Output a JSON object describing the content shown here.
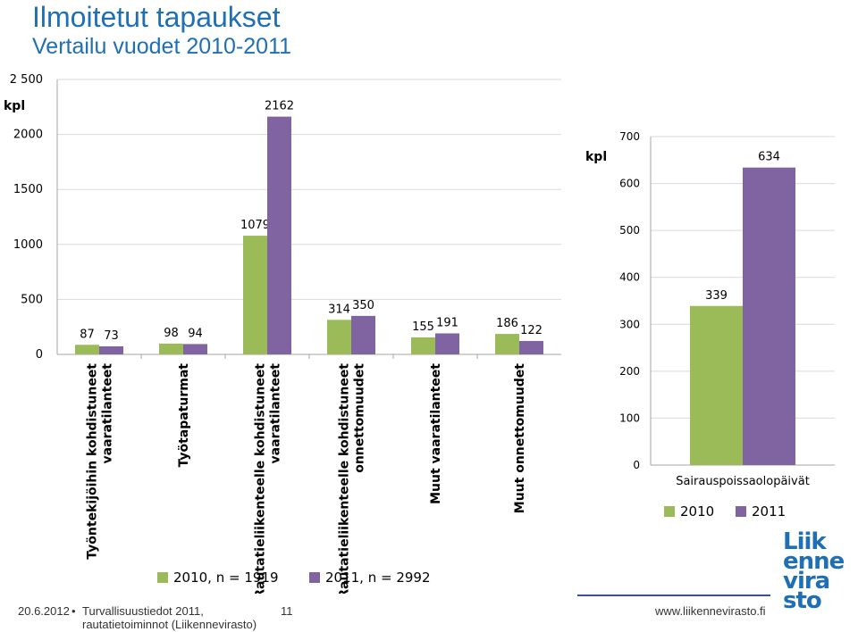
{
  "header": {
    "title": "Ilmoitetut tapaukset",
    "subtitle": "Vertailu vuodet 2010-2011"
  },
  "chart_data": [
    {
      "type": "bar",
      "ylabel": "kpl",
      "ylim": [
        0,
        2500
      ],
      "yticks": [
        "0",
        "500",
        "1000",
        "1500",
        "2000",
        "2 500"
      ],
      "categories": [
        [
          "Työntekijöihin kohdistuneet",
          "vaaratilanteet"
        ],
        [
          "Työtapaturmat"
        ],
        [
          "Rautatieliikenteelle kohdistuneet",
          "vaaratilanteet"
        ],
        [
          "Rautatieliikenteelle kohdistuneet",
          "onnettomuudet"
        ],
        [
          "Muut vaaratilanteet"
        ],
        [
          "Muut onnettomuudet"
        ]
      ],
      "series": [
        {
          "name": "2010, n = 1919",
          "values": [
            87,
            98,
            1079,
            314,
            155,
            186
          ],
          "color": "#9bbb59"
        },
        {
          "name": "2011, n = 2992",
          "values": [
            73,
            94,
            2162,
            350,
            191,
            122
          ],
          "color": "#8064a2"
        }
      ],
      "grid": true,
      "legend": "bottom"
    },
    {
      "type": "bar",
      "ylabel": "kpl",
      "ylim": [
        0,
        700
      ],
      "yticks": [
        "0",
        "100",
        "200",
        "300",
        "400",
        "500",
        "600",
        "700"
      ],
      "categories": [
        "Sairauspoissaolopäivät"
      ],
      "series": [
        {
          "name": "2010",
          "values": [
            339
          ],
          "color": "#9bbb59"
        },
        {
          "name": "2011",
          "values": [
            634
          ],
          "color": "#8064a2"
        }
      ],
      "grid": true,
      "legend": "bottom"
    }
  ],
  "footer": {
    "date": "20.6.2012",
    "bullet": "•",
    "source_line1": "Turvallisuustiedot 2011,",
    "source_line2": "rautatietoiminnot (Liikennevirasto)",
    "page_number": "11",
    "website": "www.liikennevirasto.fi"
  },
  "logo": {
    "lines": [
      "Liik",
      "enne",
      "vira",
      "sto"
    ],
    "colors": [
      "#1f6fb5",
      "#1f6fb5",
      "#1f6fb5",
      "#1f6fb5"
    ]
  }
}
